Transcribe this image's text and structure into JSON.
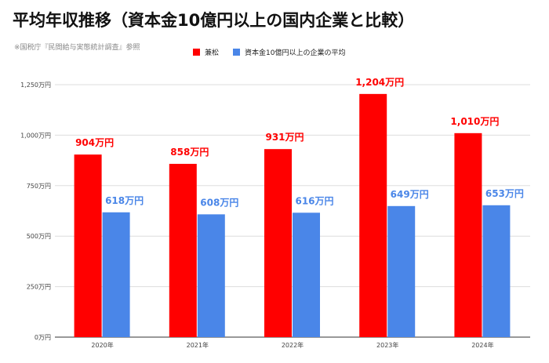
{
  "title": "平均年収推移（資本金10億円以上の国内企業と比較）",
  "subtitle": "※国税庁『民間給与実態統計調査』参照",
  "colors": {
    "series1": "#ff0000",
    "series2": "#4a86e8",
    "gridline": "#dddddd",
    "axis": "#333333",
    "label_text": "#444444"
  },
  "chart_data": {
    "type": "bar",
    "categories": [
      "2020年",
      "2021年",
      "2022年",
      "2023年",
      "2024年"
    ],
    "series": [
      {
        "name": "兼松",
        "values": [
          904,
          858,
          931,
          1204,
          1010
        ],
        "labels": [
          "904万円",
          "858万円",
          "931万円",
          "1,204万円",
          "1,010万円"
        ]
      },
      {
        "name": "資本金10億円以上の企業の平均",
        "values": [
          618,
          608,
          616,
          649,
          653
        ],
        "labels": [
          "618万円",
          "608万円",
          "616万円",
          "649万円",
          "653万円"
        ]
      }
    ],
    "ylim": [
      0,
      1250
    ],
    "yticks": [
      0,
      250,
      500,
      750,
      1000,
      1250
    ],
    "ytick_labels": [
      "0万円",
      "250万円",
      "500万円",
      "750万円",
      "1,000万円",
      "1,250万円"
    ],
    "grid": true,
    "legend_position": "top-center",
    "xlabel": "",
    "ylabel": ""
  }
}
